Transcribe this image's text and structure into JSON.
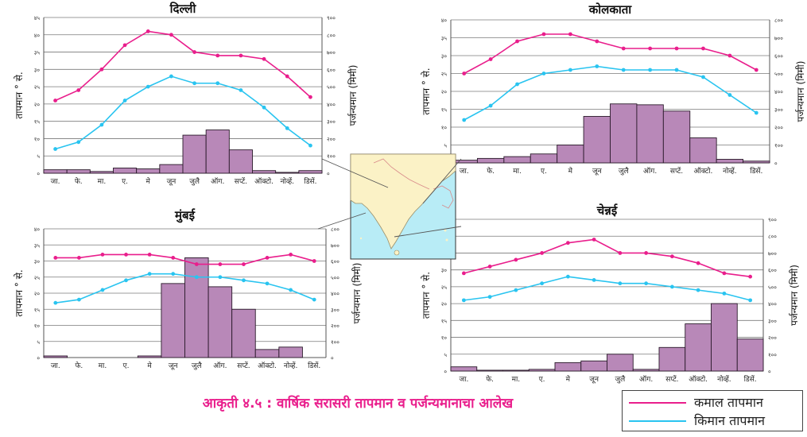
{
  "figure": {
    "caption": "आकृती ४.५ : वार्षिक सरासरी तापमान व पर्जन्यमानाचा आलेख",
    "legend": [
      {
        "label": "कमाल तापमान",
        "color": "#e91e8c"
      },
      {
        "label": "किमान तापमान",
        "color": "#29c4f0"
      }
    ],
    "colors": {
      "max_line": "#e91e8c",
      "min_line": "#29c4f0",
      "bar": "#b888b8",
      "bar_edge": "#2a1a2a",
      "grid": "#7a7a7a",
      "map_land": "#fbf2c6",
      "map_sea": "#b8ecf6"
    },
    "map_icon": "india-map"
  },
  "chart_data": [
    {
      "type": "bar+line",
      "title": "दिल्ली",
      "ylabel": "तापमान ° से.",
      "y2label": "पर्जन्यमान (मिमी)",
      "categories": [
        "जा.",
        "फे.",
        "मा.",
        "ए.",
        "मे",
        "जून",
        "जुलै",
        "ऑग.",
        "सप्टें.",
        "ऑक्टो.",
        "नोव्हें.",
        "डिसें."
      ],
      "temp_ticks": [
        "०",
        "५",
        "१०",
        "१५",
        "२०",
        "२५",
        "३०",
        "३५",
        "४०",
        "४५"
      ],
      "rain_ticks": [
        "०",
        "१००",
        "२००",
        "३००",
        "४००",
        "५००",
        "६००",
        "७००",
        "८००",
        "९००"
      ],
      "ylim": [
        0,
        45
      ],
      "y2lim": [
        0,
        900
      ],
      "series": [
        {
          "name": "कमाल तापमान",
          "kind": "line",
          "values": [
            21,
            24,
            30,
            37,
            41,
            40,
            35,
            34,
            34,
            33,
            28,
            22
          ]
        },
        {
          "name": "किमान तापमान",
          "kind": "line",
          "values": [
            7,
            9,
            14,
            21,
            25,
            28,
            26,
            26,
            24,
            19,
            13,
            8
          ]
        },
        {
          "name": "पर्जन्यमान",
          "kind": "bar",
          "values": [
            20,
            20,
            10,
            30,
            25,
            50,
            220,
            250,
            135,
            15,
            5,
            15
          ]
        }
      ]
    },
    {
      "type": "bar+line",
      "title": "कोलकाता",
      "ylabel": "तापमान ° से.",
      "y2label": "पर्जन्यमान (मिमी)",
      "categories": [
        "जा.",
        "फे.",
        "मा.",
        "ए.",
        "मे",
        "जून",
        "जुलै",
        "ऑग.",
        "सप्टें.",
        "ऑक्टो.",
        "नोव्हें.",
        "डिसें."
      ],
      "temp_ticks": [
        "०",
        "५",
        "१०",
        "१५",
        "२०",
        "२५",
        "३०",
        "३५",
        "४०"
      ],
      "rain_ticks": [
        "०",
        "१००",
        "२००",
        "३००",
        "४००",
        "५००",
        "६००",
        "७००",
        "८००"
      ],
      "ylim": [
        0,
        40
      ],
      "y2lim": [
        0,
        800
      ],
      "series": [
        {
          "name": "कमाल तापमान",
          "kind": "line",
          "values": [
            25,
            29,
            34,
            36,
            36,
            34,
            32,
            32,
            32,
            32,
            30,
            26
          ]
        },
        {
          "name": "किमान तापमान",
          "kind": "line",
          "values": [
            12,
            16,
            22,
            25,
            26,
            27,
            26,
            26,
            26,
            24,
            19,
            14
          ]
        },
        {
          "name": "पर्जन्यमान",
          "kind": "bar",
          "values": [
            15,
            25,
            35,
            50,
            100,
            260,
            330,
            325,
            290,
            140,
            20,
            10
          ]
        }
      ]
    },
    {
      "type": "bar+line",
      "title": "मुंबई",
      "ylabel": "तापमान ° से.",
      "y2label": "पर्जन्यमान (मिमी)",
      "categories": [
        "जा.",
        "फे.",
        "मा.",
        "ए.",
        "मे",
        "जून",
        "जुलै",
        "ऑग.",
        "सप्टें.",
        "ऑक्टो.",
        "नोव्हें.",
        "डिसें."
      ],
      "temp_ticks": [
        "०",
        "५",
        "१०",
        "१५",
        "२०",
        "२५",
        "३०",
        "३५",
        "४०"
      ],
      "rain_ticks": [
        "०",
        "१००",
        "२००",
        "३००",
        "४००",
        "५००",
        "६००",
        "७००",
        "८००"
      ],
      "ylim": [
        0,
        40
      ],
      "y2lim": [
        0,
        800
      ],
      "series": [
        {
          "name": "कमाल तापमान",
          "kind": "line",
          "values": [
            31,
            31,
            32,
            32,
            32,
            31,
            29,
            29,
            29,
            31,
            32,
            30
          ]
        },
        {
          "name": "किमान तापमान",
          "kind": "line",
          "values": [
            17,
            18,
            21,
            24,
            26,
            26,
            25,
            25,
            24,
            23,
            21,
            18
          ]
        },
        {
          "name": "पर्जन्यमान",
          "kind": "bar",
          "values": [
            10,
            0,
            0,
            0,
            10,
            460,
            620,
            440,
            300,
            50,
            65,
            0
          ]
        }
      ]
    },
    {
      "type": "bar+line",
      "title": "चेन्नई",
      "ylabel": "तापमान ° से.",
      "y2label": "पर्जन्यमान (मिमी)",
      "categories": [
        "जा.",
        "फे.",
        "मा.",
        "ए.",
        "मे",
        "जून",
        "जुलै",
        "ऑग.",
        "सप्टें.",
        "ऑक्टो.",
        "नोव्हें.",
        "डिसें."
      ],
      "temp_ticks": [
        "०",
        "५",
        "१०",
        "१५",
        "२०",
        "२५",
        "३०",
        "३५",
        "४०",
        "४५"
      ],
      "rain_ticks": [
        "०",
        "१००",
        "२००",
        "३००",
        "४००",
        "५००",
        "६००",
        "७००",
        "८००",
        "९००"
      ],
      "ylim": [
        0,
        45
      ],
      "y2lim": [
        0,
        900
      ],
      "series": [
        {
          "name": "कमाल तापमान",
          "kind": "line",
          "values": [
            29,
            31,
            33,
            35,
            38,
            39,
            35,
            35,
            34,
            32,
            29,
            28
          ]
        },
        {
          "name": "किमान तापमान",
          "kind": "line",
          "values": [
            21,
            22,
            24,
            26,
            28,
            27,
            26,
            26,
            25,
            24,
            23,
            21
          ]
        },
        {
          "name": "पर्जन्यमान",
          "kind": "bar",
          "values": [
            25,
            5,
            5,
            10,
            50,
            60,
            100,
            10,
            140,
            280,
            400,
            190
          ]
        }
      ]
    }
  ]
}
